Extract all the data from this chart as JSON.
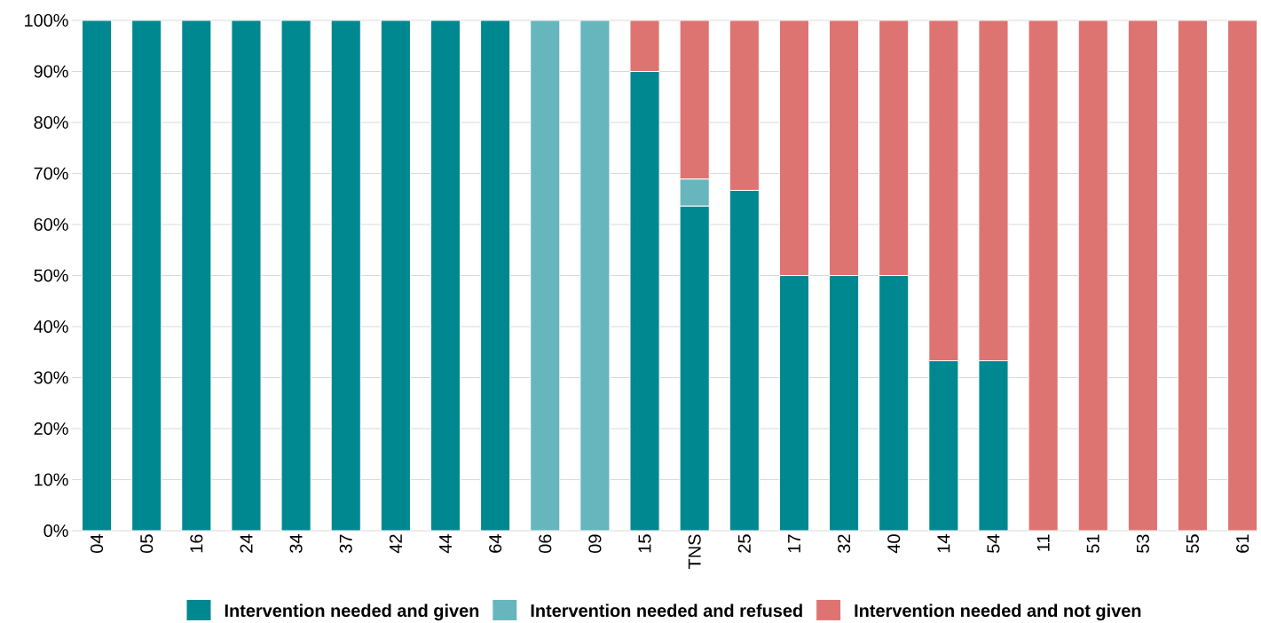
{
  "chart_data": {
    "type": "bar",
    "stacked": true,
    "categories": [
      "04",
      "05",
      "16",
      "24",
      "34",
      "37",
      "42",
      "44",
      "64",
      "06",
      "09",
      "15",
      "TNS",
      "25",
      "17",
      "32",
      "40",
      "14",
      "54",
      "11",
      "51",
      "53",
      "55",
      "61"
    ],
    "series": [
      {
        "name": "Intervention needed and given",
        "color": "#008891",
        "values": [
          100,
          100,
          100,
          100,
          100,
          100,
          100,
          100,
          100,
          0,
          0,
          90,
          63.6,
          66.7,
          50,
          50,
          50,
          33.3,
          33.3,
          0,
          0,
          0,
          0,
          0
        ]
      },
      {
        "name": "Intervention needed and refused",
        "color": "#67b6bd",
        "values": [
          0,
          0,
          0,
          0,
          0,
          0,
          0,
          0,
          0,
          100,
          100,
          0,
          5.3,
          0,
          0,
          0,
          0,
          0,
          0,
          0,
          0,
          0,
          0,
          0
        ]
      },
      {
        "name": "Intervention needed and not given",
        "color": "#dd7471",
        "values": [
          0,
          0,
          0,
          0,
          0,
          0,
          0,
          0,
          0,
          0,
          0,
          10,
          31.1,
          33.3,
          50,
          50,
          50,
          66.7,
          66.7,
          100,
          100,
          100,
          100,
          100
        ]
      }
    ],
    "ylim": [
      0,
      100
    ],
    "yticks": [
      {
        "value": 0,
        "label": "0%"
      },
      {
        "value": 10,
        "label": "10%"
      },
      {
        "value": 20,
        "label": "20%"
      },
      {
        "value": 30,
        "label": "30%"
      },
      {
        "value": 40,
        "label": "40%"
      },
      {
        "value": 50,
        "label": "50%"
      },
      {
        "value": 60,
        "label": "60%"
      },
      {
        "value": 70,
        "label": "70%"
      },
      {
        "value": 80,
        "label": "80%"
      },
      {
        "value": 90,
        "label": "90%"
      },
      {
        "value": 100,
        "label": "100%"
      }
    ],
    "grid": "y",
    "legend": "bottom"
  }
}
